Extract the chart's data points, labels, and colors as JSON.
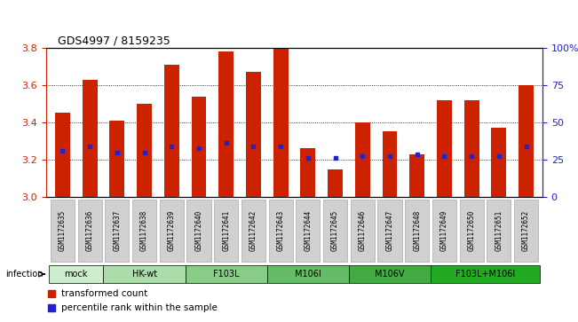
{
  "title": "GDS4997 / 8159235",
  "samples": [
    "GSM1172635",
    "GSM1172636",
    "GSM1172637",
    "GSM1172638",
    "GSM1172639",
    "GSM1172640",
    "GSM1172641",
    "GSM1172642",
    "GSM1172643",
    "GSM1172644",
    "GSM1172645",
    "GSM1172646",
    "GSM1172647",
    "GSM1172648",
    "GSM1172649",
    "GSM1172650",
    "GSM1172651",
    "GSM1172652"
  ],
  "bar_heights": [
    3.45,
    3.63,
    3.41,
    3.5,
    3.71,
    3.54,
    3.78,
    3.67,
    3.8,
    3.26,
    3.15,
    3.4,
    3.35,
    3.23,
    3.52,
    3.52,
    3.37,
    3.6
  ],
  "blue_dot_y": [
    3.25,
    3.27,
    3.24,
    3.24,
    3.27,
    3.26,
    3.29,
    3.27,
    3.27,
    3.21,
    3.21,
    3.22,
    3.22,
    3.23,
    3.22,
    3.22,
    3.22,
    3.27
  ],
  "ylim": [
    3.0,
    3.8
  ],
  "y_ticks": [
    3.0,
    3.2,
    3.4,
    3.6,
    3.8
  ],
  "right_y_ticks": [
    0,
    25,
    50,
    75,
    100
  ],
  "right_y_labels": [
    "0",
    "25",
    "50",
    "75",
    "100%"
  ],
  "bar_color": "#cc2200",
  "dot_color": "#2222cc",
  "bar_width": 0.55,
  "groups": [
    {
      "label": "mock",
      "start": 0,
      "end": 2,
      "color": "#cceecc"
    },
    {
      "label": "HK-wt",
      "start": 2,
      "end": 5,
      "color": "#aaddaa"
    },
    {
      "label": "F103L",
      "start": 5,
      "end": 8,
      "color": "#88cc88"
    },
    {
      "label": "M106I",
      "start": 8,
      "end": 11,
      "color": "#66bb66"
    },
    {
      "label": "M106V",
      "start": 11,
      "end": 14,
      "color": "#44aa44"
    },
    {
      "label": "F103L+M106I",
      "start": 14,
      "end": 18,
      "color": "#22aa22"
    }
  ],
  "infection_label": "infection",
  "legend_bar_label": "transformed count",
  "legend_dot_label": "percentile rank within the sample",
  "left_axis_color": "#cc2200",
  "right_axis_color": "#2222cc",
  "sample_box_color": "#d0d0d0",
  "sample_box_edge": "#aaaaaa"
}
